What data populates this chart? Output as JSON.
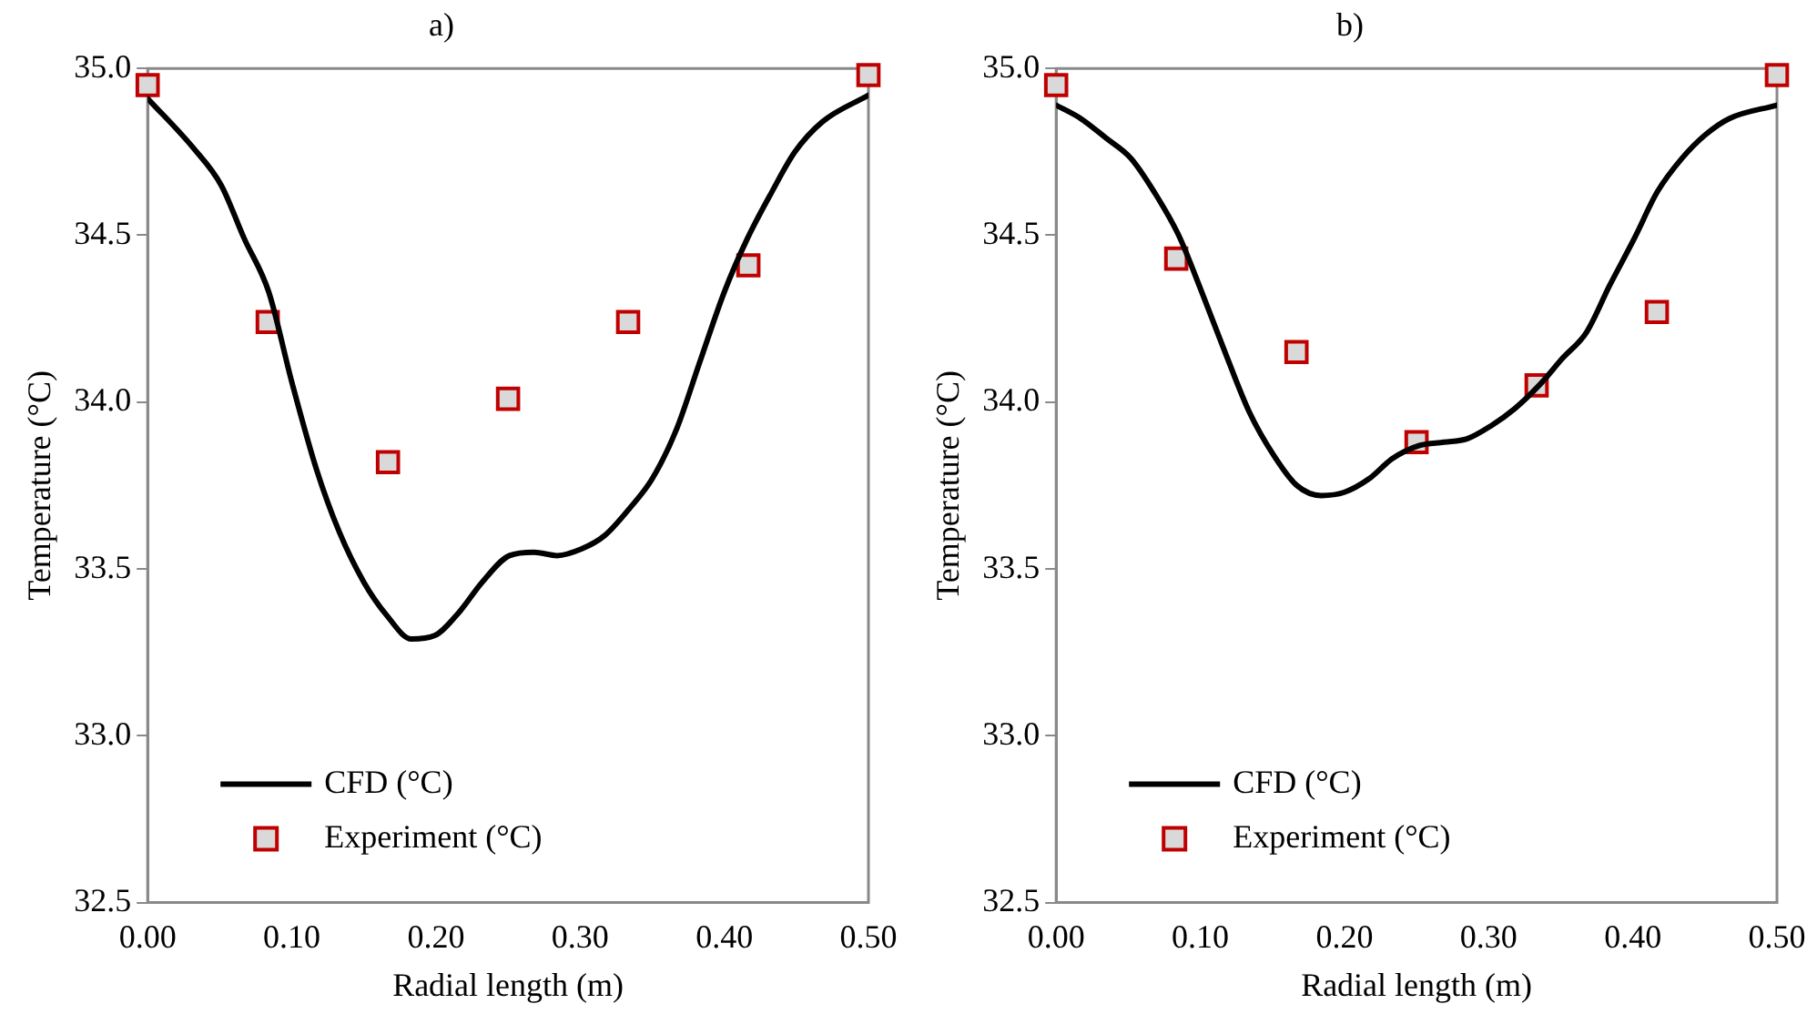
{
  "chart_data": [
    {
      "type": "line",
      "title": "a)",
      "xlabel": "Radial length (m)",
      "ylabel": "Temperature (°C)",
      "xlim": [
        0,
        0.5
      ],
      "xticks": [
        {
          "value": 0,
          "label": "0.00"
        },
        {
          "value": 0.1,
          "label": "0.10"
        },
        {
          "value": 0.2,
          "label": "0.20"
        },
        {
          "value": 0.3,
          "label": "0.30"
        },
        {
          "value": 0.4,
          "label": "0.40"
        },
        {
          "value": 0.5,
          "label": "0.50"
        }
      ],
      "ylim": [
        32.5,
        35
      ],
      "yticks": [
        {
          "value": 32.5,
          "label": "32.5"
        },
        {
          "value": 33,
          "label": "33.0"
        },
        {
          "value": 33.5,
          "label": "33.5"
        },
        {
          "value": 34,
          "label": "34.0"
        },
        {
          "value": 34.5,
          "label": "34.5"
        },
        {
          "value": 35,
          "label": "35.0"
        }
      ],
      "grid": false,
      "legend": "bottom left",
      "series": [
        {
          "name": "CFD (°C)",
          "color": "#000000",
          "marker": "none",
          "line_style": "solid",
          "x": [
            0,
            0.032,
            0.051,
            0.067,
            0.084,
            0.1,
            0.117,
            0.133,
            0.15,
            0.166,
            0.183,
            0.199,
            0.216,
            0.232,
            0.251,
            0.268,
            0.284,
            0.301,
            0.317,
            0.334,
            0.35,
            0.367,
            0.383,
            0.4,
            0.416,
            0.433,
            0.449,
            0.468,
            0.5
          ],
          "values": [
            34.91,
            34.76,
            34.65,
            34.49,
            34.33,
            34.06,
            33.8,
            33.61,
            33.46,
            33.36,
            33.29,
            33.3,
            33.37,
            33.46,
            33.54,
            33.55,
            33.54,
            33.56,
            33.6,
            33.68,
            33.77,
            33.92,
            34.12,
            34.33,
            34.49,
            34.63,
            34.75,
            34.84,
            34.92
          ]
        },
        {
          "name": "Experiment (°C)",
          "type": "scatter",
          "color": "#c00000",
          "marker": "square",
          "x": [
            0,
            0.0833,
            0.1667,
            0.25,
            0.3333,
            0.4167,
            0.5
          ],
          "values": [
            34.95,
            34.24,
            33.82,
            34.01,
            34.24,
            34.41,
            34.98
          ]
        }
      ]
    },
    {
      "type": "line",
      "title": "b)",
      "xlabel": "Radial length (m)",
      "ylabel": "Temperature (°C)",
      "xlim": [
        0,
        0.5
      ],
      "xticks": [
        {
          "value": 0,
          "label": "0.00"
        },
        {
          "value": 0.1,
          "label": "0.10"
        },
        {
          "value": 0.2,
          "label": "0.20"
        },
        {
          "value": 0.3,
          "label": "0.30"
        },
        {
          "value": 0.4,
          "label": "0.40"
        },
        {
          "value": 0.5,
          "label": "0.50"
        }
      ],
      "ylim": [
        32.5,
        35
      ],
      "yticks": [
        {
          "value": 32.5,
          "label": "32.5"
        },
        {
          "value": 33,
          "label": "33.0"
        },
        {
          "value": 33.5,
          "label": "33.5"
        },
        {
          "value": 34,
          "label": "34.0"
        },
        {
          "value": 34.5,
          "label": "34.5"
        },
        {
          "value": 35,
          "label": "35.0"
        }
      ],
      "grid": false,
      "legend": "bottom left",
      "series": [
        {
          "name": "CFD (°C)",
          "color": "#000000",
          "marker": "none",
          "line_style": "solid",
          "x": [
            0,
            0.017,
            0.035,
            0.052,
            0.068,
            0.085,
            0.101,
            0.118,
            0.134,
            0.151,
            0.167,
            0.184,
            0.2,
            0.217,
            0.233,
            0.252,
            0.269,
            0.285,
            0.302,
            0.318,
            0.335,
            0.351,
            0.368,
            0.384,
            0.401,
            0.417,
            0.434,
            0.45,
            0.467,
            0.5
          ],
          "values": [
            34.89,
            34.85,
            34.79,
            34.73,
            34.63,
            34.5,
            34.33,
            34.14,
            33.97,
            33.84,
            33.75,
            33.72,
            33.73,
            33.77,
            33.83,
            33.87,
            33.88,
            33.89,
            33.93,
            33.98,
            34.05,
            34.13,
            34.21,
            34.35,
            34.49,
            34.63,
            34.73,
            34.8,
            34.85,
            34.89
          ]
        },
        {
          "name": "Experiment (°C)",
          "type": "scatter",
          "color": "#c00000",
          "marker": "square",
          "x": [
            0,
            0.0833,
            0.1667,
            0.25,
            0.3333,
            0.4167,
            0.5
          ],
          "values": [
            34.95,
            34.43,
            34.15,
            33.88,
            34.05,
            34.27,
            34.98
          ]
        }
      ]
    }
  ]
}
